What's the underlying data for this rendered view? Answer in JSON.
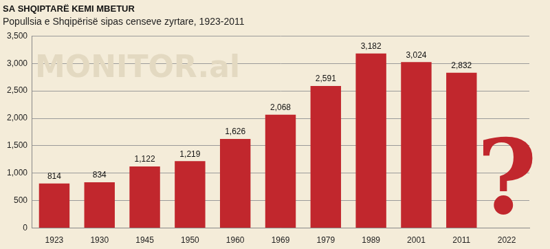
{
  "chart_data": {
    "type": "bar",
    "title": "SA SHQIPTARË KEMI MBETUR",
    "subtitle": "Popullsia e Shqipërisë sipas censeve zyrtare, 1923-2011",
    "categories": [
      "1923",
      "1930",
      "1945",
      "1950",
      "1960",
      "1969",
      "1979",
      "1989",
      "2001",
      "2011",
      "2022"
    ],
    "values": [
      814,
      834,
      1122,
      1219,
      1626,
      2068,
      2591,
      3182,
      3024,
      2832,
      null
    ],
    "value_labels": [
      "814",
      "834",
      "1,122",
      "1,219",
      "1,626",
      "2,068",
      "2,591",
      "3,182",
      "3,024",
      "2,832",
      null
    ],
    "color": "#c1272d",
    "ylim": [
      0,
      3500
    ],
    "yticks": [
      0,
      500,
      {
        "value": 1000,
        "label": "1,000"
      },
      {
        "value": 1500,
        "label": "1,500"
      },
      {
        "value": 2000,
        "label": "2,000"
      },
      {
        "value": 2500,
        "label": "2,500"
      },
      {
        "value": 3000,
        "label": "3,000"
      },
      {
        "value": 3500,
        "label": "3,500"
      }
    ],
    "grid": true,
    "data_labels": true,
    "annotations": [
      {
        "text": "MONITOR.al"
      },
      {
        "text": "?",
        "category": "2022"
      }
    ]
  }
}
